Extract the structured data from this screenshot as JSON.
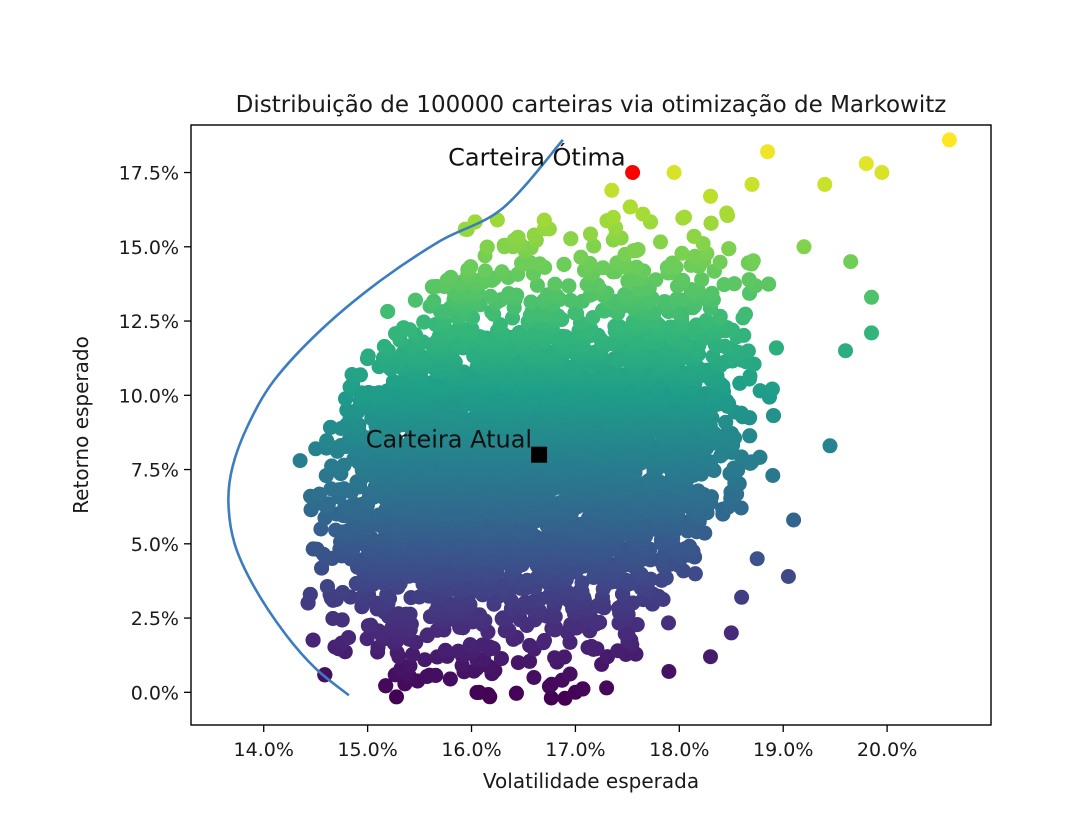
{
  "chart_data": {
    "type": "scatter",
    "title": "Distribuição de 100000 carteiras via otimização de Markowitz",
    "xlabel": "Volatilidade esperada",
    "ylabel": "Retorno esperado",
    "xlim": [
      13.3,
      21.0
    ],
    "ylim": [
      -1.1,
      19.1
    ],
    "x_ticks": [
      14,
      15,
      16,
      17,
      18,
      19,
      20
    ],
    "x_tick_labels": [
      "14.0%",
      "15.0%",
      "16.0%",
      "17.0%",
      "18.0%",
      "19.0%",
      "20.0%"
    ],
    "y_ticks": [
      0,
      2.5,
      5,
      7.5,
      10,
      12.5,
      15,
      17.5
    ],
    "y_tick_labels": [
      "0.0%",
      "2.5%",
      "5.0%",
      "7.5%",
      "10.0%",
      "12.5%",
      "15.0%",
      "17.5%"
    ],
    "grid": false,
    "legend": "none",
    "colormap": "viridis",
    "color_by": "y",
    "portfolio_count": 100000,
    "cloud_sample_points": [
      [
        14.35,
        7.8
      ],
      [
        14.45,
        6.6
      ],
      [
        14.5,
        8.2
      ],
      [
        14.55,
        5.5
      ],
      [
        14.6,
        4.5
      ],
      [
        14.7,
        6.0
      ],
      [
        14.8,
        9.5
      ],
      [
        14.85,
        10.7
      ],
      [
        15.0,
        3.8
      ],
      [
        15.1,
        1.5
      ],
      [
        15.3,
        1.2
      ],
      [
        15.55,
        1.1
      ],
      [
        15.2,
        11.5
      ],
      [
        15.6,
        13.0
      ],
      [
        15.9,
        13.8
      ],
      [
        16.05,
        0.8
      ],
      [
        16.45,
        1.0
      ],
      [
        16.4,
        15.0
      ],
      [
        16.6,
        0.5
      ],
      [
        16.75,
        15.6
      ],
      [
        16.75,
        0.2
      ],
      [
        16.9,
        -0.2
      ],
      [
        17.0,
        0.0
      ],
      [
        17.3,
        0.15
      ],
      [
        17.35,
        16.9
      ],
      [
        17.65,
        16.1
      ],
      [
        17.9,
        0.7
      ],
      [
        17.95,
        17.5
      ],
      [
        18.05,
        16.0
      ],
      [
        18.3,
        1.2
      ],
      [
        18.3,
        16.7
      ],
      [
        18.5,
        2.0
      ],
      [
        18.6,
        3.2
      ],
      [
        18.7,
        17.1
      ],
      [
        18.85,
        18.2
      ],
      [
        18.75,
        4.5
      ],
      [
        18.9,
        7.3
      ],
      [
        19.05,
        3.9
      ],
      [
        19.1,
        5.8
      ],
      [
        19.2,
        15.0
      ],
      [
        19.4,
        17.1
      ],
      [
        19.45,
        8.3
      ],
      [
        19.6,
        11.5
      ],
      [
        19.65,
        14.5
      ],
      [
        19.8,
        17.8
      ],
      [
        19.85,
        13.3
      ],
      [
        19.85,
        12.1
      ],
      [
        19.95,
        17.5
      ],
      [
        20.6,
        18.6
      ]
    ],
    "series": [
      {
        "kind": "frontier",
        "color": "#3b7dbf",
        "points": [
          [
            14.82,
            -0.1
          ],
          [
            14.5,
            0.8
          ],
          [
            14.2,
            2.0
          ],
          [
            13.9,
            3.6
          ],
          [
            13.72,
            5.0
          ],
          [
            13.66,
            6.4
          ],
          [
            13.7,
            7.6
          ],
          [
            13.85,
            9.0
          ],
          [
            14.1,
            10.5
          ],
          [
            14.55,
            12.2
          ],
          [
            15.1,
            13.8
          ],
          [
            15.7,
            15.2
          ],
          [
            16.3,
            16.3
          ],
          [
            16.88,
            18.6
          ]
        ]
      }
    ],
    "annotations": [
      {
        "label": "Carteira Ótima",
        "x": 17.55,
        "y": 17.5,
        "marker": "circle",
        "color": "#ff0000"
      },
      {
        "label": "Carteira Atual",
        "x": 16.65,
        "y": 8.0,
        "marker": "square",
        "color": "#000000"
      }
    ]
  }
}
